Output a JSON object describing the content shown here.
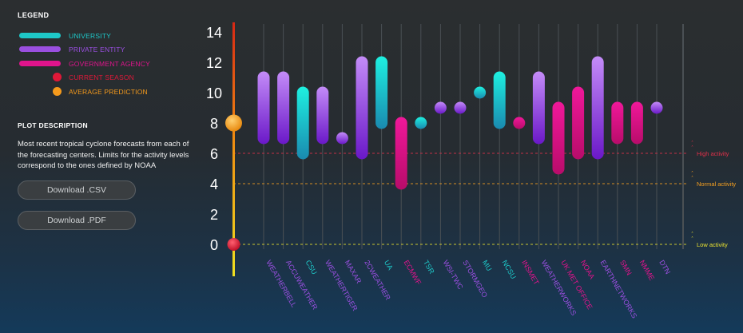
{
  "legend": {
    "title": "LEGEND",
    "items": [
      {
        "label": "UNIVERSITY",
        "color": "#1ec8c8",
        "kind": "bar"
      },
      {
        "label": "PRIVATE ENTITY",
        "color": "#9a4fe0",
        "kind": "bar"
      },
      {
        "label": "GOVERNMENT AGENCY",
        "color": "#e0148c",
        "kind": "bar"
      },
      {
        "label": "CURRENT SEASON",
        "color": "#e01838",
        "kind": "dot"
      },
      {
        "label": "AVERAGE PREDICTION",
        "color": "#f59a1c",
        "kind": "dot"
      }
    ]
  },
  "description": {
    "title": "PLOT DESCRIPTION",
    "text": "Most recent tropical cyclone forecasts from each of the forecasting centers. Limits for the activity levels correspond to the ones defined by NOAA"
  },
  "buttons": {
    "csv": "Download .CSV",
    "pdf": "Download .PDF"
  },
  "chart_data": {
    "type": "bar",
    "ylim": [
      0,
      14
    ],
    "yticks": [
      0,
      2,
      4,
      6,
      8,
      10,
      12,
      14
    ],
    "categories": [
      "WEATHERBELL",
      "ACCUWEATHER",
      "CSU",
      "WEATHERTIGER",
      "MAXAR",
      "2CWEATHER",
      "UA",
      "ECMWF",
      "TSR",
      "WSI-TWC",
      "STORMGEO",
      "MU",
      "NCSU",
      "INSMET",
      "WEATHERWORKS",
      "UK MET OFFICE",
      "NOAA",
      "EARTHNETWORKS",
      "SMN",
      "NMME",
      "DTN"
    ],
    "types": [
      "private",
      "private",
      "university",
      "private",
      "private",
      "private",
      "university",
      "government",
      "university",
      "private",
      "private",
      "university",
      "university",
      "government",
      "private",
      "government",
      "government",
      "private",
      "government",
      "government",
      "private"
    ],
    "low": [
      7,
      7,
      6,
      7,
      7,
      6,
      8,
      4,
      8,
      9,
      9,
      10,
      8,
      8,
      7,
      5,
      6,
      6,
      7,
      7,
      9
    ],
    "high": [
      11,
      11,
      10,
      10,
      7,
      12,
      12,
      8,
      8,
      9,
      9,
      10,
      11,
      8,
      11,
      9,
      10,
      12,
      9,
      9,
      9
    ],
    "type_colors": {
      "university": "#1ec8c8",
      "private": "#9a4fe0",
      "government": "#e0148c"
    },
    "current_season": 0,
    "average_prediction": 8,
    "thresholds": [
      {
        "label": "High activity",
        "value": 6,
        "color": "#e0304a"
      },
      {
        "label": "Normal activity",
        "value": 4,
        "color": "#f5a020"
      },
      {
        "label": "Low activity",
        "value": 0,
        "color": "#e8e030"
      }
    ]
  }
}
